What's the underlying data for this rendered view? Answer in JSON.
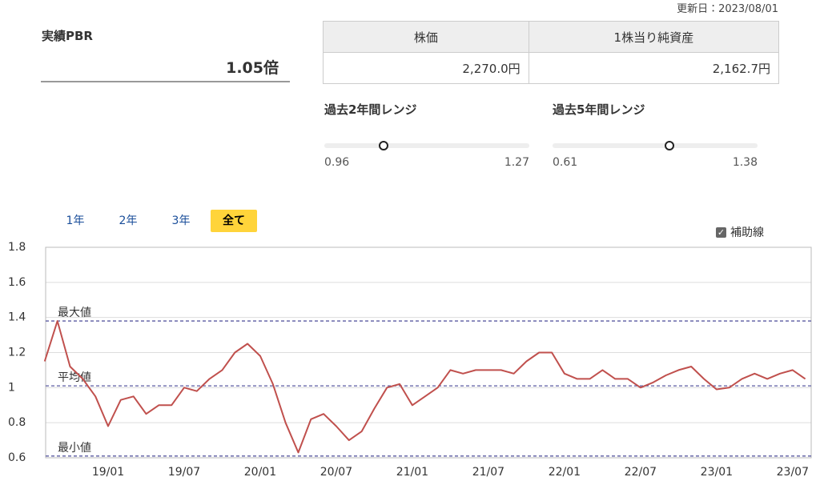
{
  "updated": "更新日：2023/08/01",
  "pbr": {
    "title": "実績PBR",
    "value": 1.05,
    "label": "1.05倍"
  },
  "table": {
    "headers": [
      "株価",
      "1株当り純資産"
    ],
    "rows": [
      [
        "2,270.0円",
        "2,162.7円"
      ]
    ]
  },
  "ranges": [
    {
      "title": "過去2年間レンジ",
      "min": 0.96,
      "max": 1.27
    },
    {
      "title": "過去5年間レンジ",
      "min": 0.61,
      "max": 1.38
    }
  ],
  "tabs": [
    {
      "label": "1年"
    },
    {
      "label": "2年"
    },
    {
      "label": "3年"
    },
    {
      "label": "全て",
      "selected": true
    }
  ],
  "checkbox": {
    "label": "補助線",
    "checked": true
  },
  "chart_data": {
    "type": "line",
    "categories": [
      null,
      null,
      null,
      null,
      null,
      "19/01",
      null,
      null,
      null,
      null,
      null,
      "19/07",
      null,
      null,
      null,
      null,
      null,
      "20/01",
      null,
      null,
      null,
      null,
      null,
      "20/07",
      null,
      null,
      null,
      null,
      null,
      "21/01",
      null,
      null,
      null,
      null,
      null,
      "21/07",
      null,
      null,
      null,
      null,
      null,
      "22/01",
      null,
      null,
      null,
      null,
      null,
      "22/07",
      null,
      null,
      null,
      null,
      null,
      "23/01",
      null,
      null,
      null,
      null,
      null,
      "23/07",
      null
    ],
    "series": [
      {
        "color": "#c0504d",
        "values": [
          1.15,
          1.38,
          1.12,
          1.05,
          0.95,
          0.78,
          0.93,
          0.95,
          0.85,
          0.9,
          0.9,
          1.0,
          0.98,
          1.05,
          1.1,
          1.2,
          1.25,
          1.18,
          1.02,
          0.8,
          0.63,
          0.82,
          0.85,
          0.78,
          0.7,
          0.75,
          0.88,
          1.0,
          1.02,
          0.9,
          0.95,
          1.0,
          1.1,
          1.08,
          1.1,
          1.1,
          1.1,
          1.08,
          1.15,
          1.2,
          1.2,
          1.08,
          1.05,
          1.05,
          1.1,
          1.05,
          1.05,
          1.0,
          1.03,
          1.07,
          1.1,
          1.12,
          1.05,
          0.99,
          1.0,
          1.05,
          1.08,
          1.05,
          1.08,
          1.1,
          1.05
        ]
      }
    ],
    "ylim": [
      0.6,
      1.8
    ],
    "yticks": [
      0.6,
      0.8,
      1,
      1.2,
      1.4,
      1.6,
      1.8
    ],
    "grid": true,
    "reference_lines": [
      {
        "label": "最大値",
        "value": 1.38,
        "color": "#5a5aa0"
      },
      {
        "label": "平均値",
        "value": 1.01,
        "color": "#5a5aa0"
      },
      {
        "label": "最小値",
        "value": 0.61,
        "color": "#5a5aa0"
      }
    ]
  }
}
